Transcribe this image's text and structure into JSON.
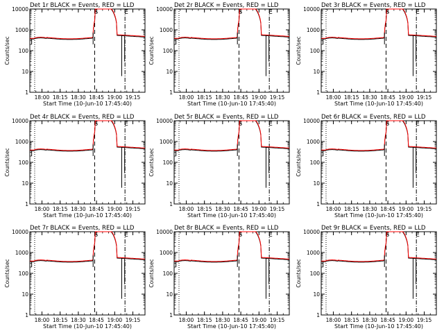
{
  "figure": {
    "background": "#ffffff",
    "colors": {
      "events": "#000000",
      "lld": "#ff0000",
      "axis": "#000000"
    }
  },
  "chart_data": [
    {
      "type": "line",
      "title": "Det 1r BLACK = Events, RED = LLD",
      "xlabel": "Start Time (10-Jun-10 17:45:40)",
      "ylabel": "Counts/sec",
      "ylog": true,
      "ylim": [
        1,
        10000
      ],
      "yticks": [
        "1",
        "10",
        "100",
        "1000",
        "10000"
      ],
      "xticks": [
        "18:00",
        "18:15",
        "18:30",
        "18:45",
        "19:00",
        "19:15"
      ],
      "markers": [
        "S",
        "E"
      ],
      "series": [
        {
          "name": "Events",
          "color": "#000000"
        },
        {
          "name": "LLD",
          "color": "#ff0000"
        }
      ]
    },
    {
      "type": "line",
      "title": "Det 2r BLACK = Events, RED = LLD",
      "xlabel": "Start Time (10-Jun-10 17:45:40)",
      "ylabel": "Counts/sec",
      "ylog": true,
      "ylim": [
        1,
        10000
      ],
      "yticks": [
        "1",
        "10",
        "100",
        "1000",
        "10000"
      ],
      "xticks": [
        "18:00",
        "18:15",
        "18:30",
        "18:45",
        "19:00",
        "19:15"
      ],
      "markers": [
        "S",
        "E"
      ],
      "series": [
        {
          "name": "Events",
          "color": "#000000"
        },
        {
          "name": "LLD",
          "color": "#ff0000"
        }
      ]
    },
    {
      "type": "line",
      "title": "Det 3r BLACK = Events, RED = LLD",
      "xlabel": "Start Time (10-Jun-10 17:45:40)",
      "ylabel": "Counts/sec",
      "ylog": true,
      "ylim": [
        1,
        10000
      ],
      "yticks": [
        "1",
        "10",
        "100",
        "1000",
        "10000"
      ],
      "xticks": [
        "18:00",
        "18:15",
        "18:30",
        "18:45",
        "19:00",
        "19:15"
      ],
      "markers": [
        "S",
        "E"
      ],
      "series": [
        {
          "name": "Events",
          "color": "#000000"
        },
        {
          "name": "LLD",
          "color": "#ff0000"
        }
      ]
    },
    {
      "type": "line",
      "title": "Det 4r BLACK = Events, RED = LLD",
      "xlabel": "Start Time (10-Jun-10 17:45:40)",
      "ylabel": "Counts/sec",
      "ylog": true,
      "ylim": [
        1,
        10000
      ],
      "yticks": [
        "1",
        "10",
        "100",
        "1000",
        "10000"
      ],
      "xticks": [
        "18:00",
        "18:15",
        "18:30",
        "18:45",
        "19:00",
        "19:15"
      ],
      "markers": [
        "S",
        "E"
      ],
      "series": [
        {
          "name": "Events",
          "color": "#000000"
        },
        {
          "name": "LLD",
          "color": "#ff0000"
        }
      ]
    },
    {
      "type": "line",
      "title": "Det 5r BLACK = Events, RED = LLD",
      "xlabel": "Start Time (10-Jun-10 17:45:40)",
      "ylabel": "Counts/sec",
      "ylog": true,
      "ylim": [
        1,
        10000
      ],
      "yticks": [
        "1",
        "10",
        "100",
        "1000",
        "10000"
      ],
      "xticks": [
        "18:00",
        "18:15",
        "18:30",
        "18:45",
        "19:00",
        "19:15"
      ],
      "markers": [
        "S",
        "E"
      ],
      "series": [
        {
          "name": "Events",
          "color": "#000000"
        },
        {
          "name": "LLD",
          "color": "#ff0000"
        }
      ]
    },
    {
      "type": "line",
      "title": "Det 6r BLACK = Events, RED = LLD",
      "xlabel": "Start Time (10-Jun-10 17:45:40)",
      "ylabel": "Counts/sec",
      "ylog": true,
      "ylim": [
        1,
        10000
      ],
      "yticks": [
        "1",
        "10",
        "100",
        "1000",
        "10000"
      ],
      "xticks": [
        "18:00",
        "18:15",
        "18:30",
        "18:45",
        "19:00",
        "19:15"
      ],
      "markers": [
        "S",
        "E"
      ],
      "series": [
        {
          "name": "Events",
          "color": "#000000"
        },
        {
          "name": "LLD",
          "color": "#ff0000"
        }
      ]
    },
    {
      "type": "line",
      "title": "Det 7r BLACK = Events, RED = LLD",
      "xlabel": "Start Time (10-Jun-10 17:45:40)",
      "ylabel": "Counts/sec",
      "ylog": true,
      "ylim": [
        1,
        10000
      ],
      "yticks": [
        "1",
        "10",
        "100",
        "1000",
        "10000"
      ],
      "xticks": [
        "18:00",
        "18:15",
        "18:30",
        "18:45",
        "19:00",
        "19:15"
      ],
      "markers": [
        "S",
        "E"
      ],
      "series": [
        {
          "name": "Events",
          "color": "#000000"
        },
        {
          "name": "LLD",
          "color": "#ff0000"
        }
      ]
    },
    {
      "type": "line",
      "title": "Det 8r BLACK = Events, RED = LLD",
      "xlabel": "Start Time (10-Jun-10 17:45:40)",
      "ylabel": "Counts/sec",
      "ylog": true,
      "ylim": [
        1,
        10000
      ],
      "yticks": [
        "1",
        "10",
        "100",
        "1000",
        "10000"
      ],
      "xticks": [
        "18:00",
        "18:15",
        "18:30",
        "18:45",
        "19:00",
        "19:15"
      ],
      "markers": [
        "S",
        "E"
      ],
      "series": [
        {
          "name": "Events",
          "color": "#000000"
        },
        {
          "name": "LLD",
          "color": "#ff0000"
        }
      ]
    },
    {
      "type": "line",
      "title": "Det 9r BLACK = Events, RED = LLD",
      "xlabel": "Start Time (10-Jun-10 17:45:40)",
      "ylabel": "Counts/sec",
      "ylog": true,
      "ylim": [
        1,
        10000
      ],
      "yticks": [
        "1",
        "10",
        "100",
        "1000",
        "10000"
      ],
      "xticks": [
        "18:00",
        "18:15",
        "18:30",
        "18:45",
        "19:00",
        "19:15"
      ],
      "markers": [
        "S",
        "E"
      ],
      "series": [
        {
          "name": "Events",
          "color": "#000000"
        },
        {
          "name": "LLD",
          "color": "#ff0000"
        }
      ]
    }
  ]
}
